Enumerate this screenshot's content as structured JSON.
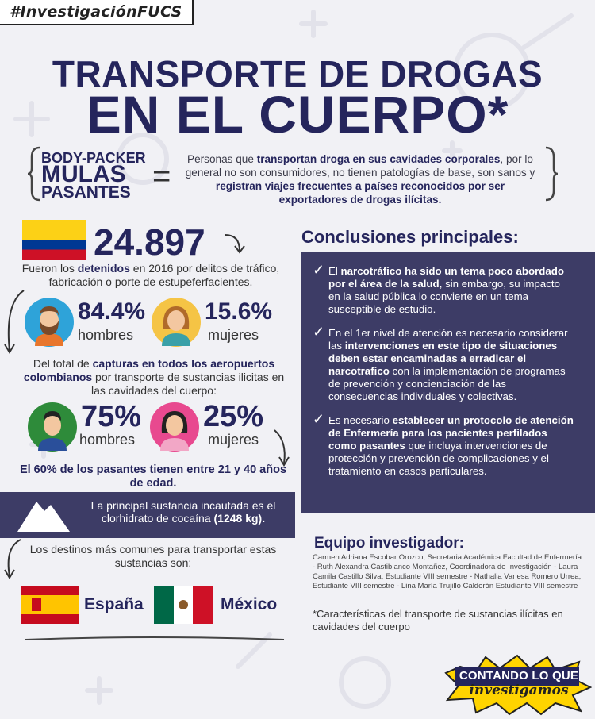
{
  "hashtag": "#InvestigaciónFUCS",
  "title": {
    "line1": "TRANSPORTE DE DROGAS",
    "line2": "EN EL CUERPO*"
  },
  "terms": [
    "BODY-PACKER",
    "MULAS",
    "PASANTES"
  ],
  "definition": {
    "p1": "Personas que ",
    "b1": "transportan droga en sus cavidades corporales",
    "p2": ", por lo general no son consumidores, no tienen patologías de base, son sanos y ",
    "b2": "registran viajes frecuentes a países reconocidos por ser exportadores de drogas ilícitas."
  },
  "detained": {
    "number": "24.897",
    "p1": "Fueron los ",
    "b1": "detenidos",
    "p2": " en 2016 por delitos de tráfico, fabricación o porte de estupeferfacientes."
  },
  "gender1": {
    "men_pct": "84.4%",
    "men_label": "hombres",
    "women_pct": "15.6%",
    "women_label": "mujeres"
  },
  "captures": {
    "p1": "Del total de ",
    "b1": "capturas en todos los aeropuertos colombianos",
    "p2": " por transporte de sustancias ilicitas en las cavidades del cuerpo:"
  },
  "gender2": {
    "men_pct": "75%",
    "men_label": "hombres",
    "women_pct": "25%",
    "women_label": "mujeres"
  },
  "age_text": "El 60% de los pasantes tienen entre 21 y 40 años de edad.",
  "substance": {
    "p1": "La principal sustancia incautada es el clorhidrato de cocaína ",
    "b1": "(1248 kg)."
  },
  "destinations": {
    "intro": "Los destinos más comunes para transportar estas sustancias son:",
    "spain": "España",
    "mexico": "México"
  },
  "conclusions": {
    "title": "Conclusiones principales:",
    "items": [
      {
        "a": "El ",
        "b": "narcotráfico ha sido un tema poco abordado por el área de la salud",
        "c": ", sin embargo, su impacto en la salud pública lo convierte en un tema susceptible de estudio.",
        "d": "",
        "e": ""
      },
      {
        "a": "En el 1er nivel de atención es necesario considerar las ",
        "b": "intervenciones en este tipo de situaciones deben estar encaminadas a erradicar el narcotrafico",
        "c": " con la implementación de programas de prevención y concienciación de las consecuencias individuales y colectivas.",
        "d": "",
        "e": ""
      },
      {
        "a": "Es necesario ",
        "b": "establecer un protocolo de atención de Enfermería para los pacientes perfilados como pasantes",
        "c": " que incluya intervenciones de protección y prevención de complicaciones y el tratamiento en casos particulares.",
        "d": "",
        "e": ""
      }
    ]
  },
  "team": {
    "title": "Equipo investigador:",
    "body": "Carmen Adriana Escobar Orozco, Secretaria Académica Facultad de Enfermería - Ruth Alexandra Castiblanco Montañez, Coordinadora de Investigación - Laura Camila Castillo Silva, Estudiante VIII semestre - Nathalia Vanesa Romero Urrea,  Estudiante VIII semestre - Lina María Trujillo Calderón Estudiante VIII semestre"
  },
  "footnote": "*Características del transporte de sustancias ilícitas en cavidades del cuerpo",
  "badge": {
    "line1": "CONTANDO LO QUE",
    "line2": "investigamos"
  },
  "colors": {
    "navy": "#25255c",
    "panel": "#3d3c66",
    "background": "#f1f1f5",
    "badge_yellow": "#ffd400"
  }
}
